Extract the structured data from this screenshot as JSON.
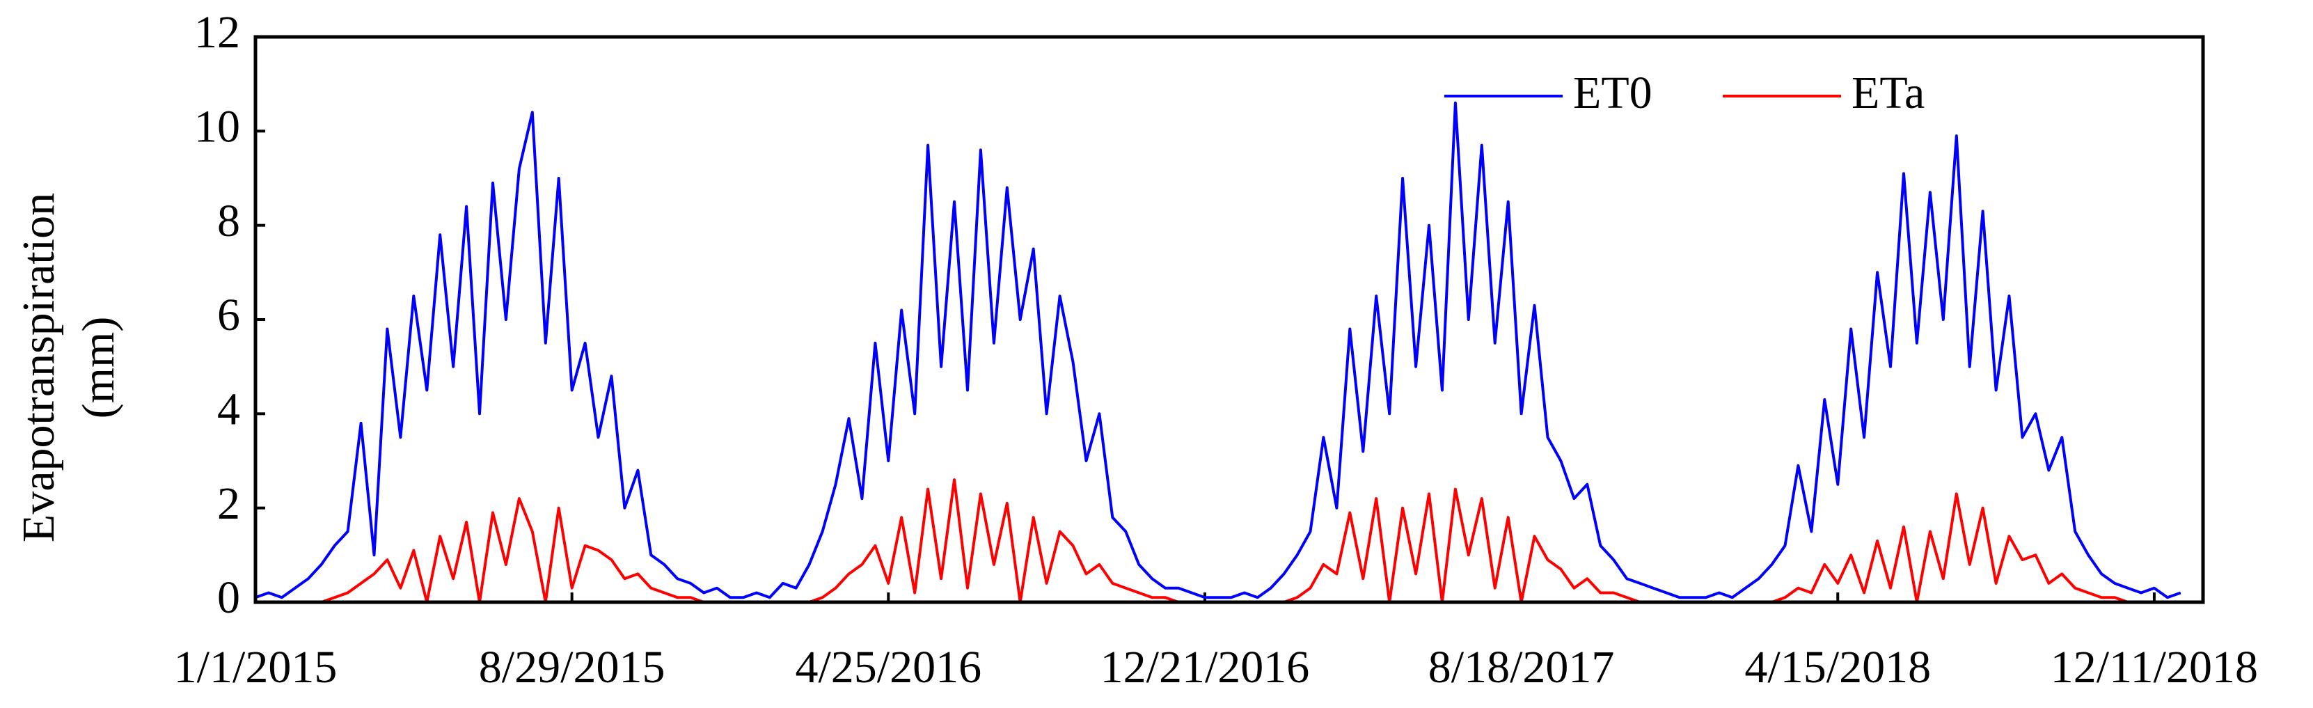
{
  "chart_data": {
    "type": "line",
    "ylabel": [
      "Evapotranspiration",
      "(mm)"
    ],
    "x": [
      "1/1/2015",
      "1/11/2015",
      "1/21/2015",
      "1/31/2015",
      "2/10/2015",
      "2/20/2015",
      "3/2/2015",
      "3/12/2015",
      "3/22/2015",
      "4/1/2015",
      "4/11/2015",
      "4/21/2015",
      "5/1/2015",
      "5/11/2015",
      "5/21/2015",
      "5/31/2015",
      "6/10/2015",
      "6/20/2015",
      "6/30/2015",
      "7/10/2015",
      "7/20/2015",
      "7/30/2015",
      "8/9/2015",
      "8/19/2015",
      "8/29/2015",
      "9/8/2015",
      "9/18/2015",
      "9/28/2015",
      "10/8/2015",
      "10/18/2015",
      "10/28/2015",
      "11/7/2015",
      "11/17/2015",
      "11/27/2015",
      "12/7/2015",
      "12/17/2015",
      "12/27/2015",
      "1/6/2016",
      "1/16/2016",
      "1/26/2016",
      "2/5/2016",
      "2/15/2016",
      "2/25/2016",
      "3/6/2016",
      "3/16/2016",
      "3/26/2016",
      "4/5/2016",
      "4/15/2016",
      "4/25/2016",
      "5/5/2016",
      "5/15/2016",
      "5/25/2016",
      "6/4/2016",
      "6/14/2016",
      "6/24/2016",
      "7/4/2016",
      "7/14/2016",
      "7/24/2016",
      "8/3/2016",
      "8/13/2016",
      "8/23/2016",
      "9/2/2016",
      "9/12/2016",
      "9/22/2016",
      "10/2/2016",
      "10/12/2016",
      "10/22/2016",
      "11/1/2016",
      "11/11/2016",
      "11/21/2016",
      "12/1/2016",
      "12/11/2016",
      "12/21/2016",
      "12/31/2016",
      "1/10/2017",
      "1/20/2017",
      "1/30/2017",
      "2/9/2017",
      "2/19/2017",
      "3/1/2017",
      "3/11/2017",
      "3/21/2017",
      "3/31/2017",
      "4/10/2017",
      "4/20/2017",
      "4/30/2017",
      "5/10/2017",
      "5/20/2017",
      "5/30/2017",
      "6/9/2017",
      "6/19/2017",
      "6/29/2017",
      "7/9/2017",
      "7/19/2017",
      "7/29/2017",
      "8/8/2017",
      "8/18/2017",
      "8/28/2017",
      "9/7/2017",
      "9/17/2017",
      "9/27/2017",
      "10/7/2017",
      "10/17/2017",
      "10/27/2017",
      "11/6/2017",
      "11/16/2017",
      "11/26/2017",
      "12/6/2017",
      "12/16/2017",
      "12/26/2017",
      "1/5/2018",
      "1/15/2018",
      "1/25/2018",
      "2/4/2018",
      "2/14/2018",
      "2/24/2018",
      "3/6/2018",
      "3/16/2018",
      "3/26/2018",
      "4/5/2018",
      "4/15/2018",
      "4/25/2018",
      "5/5/2018",
      "5/15/2018",
      "5/25/2018",
      "6/4/2018",
      "6/14/2018",
      "6/24/2018",
      "7/4/2018",
      "7/14/2018",
      "7/24/2018",
      "8/3/2018",
      "8/13/2018",
      "8/23/2018",
      "9/2/2018",
      "9/12/2018",
      "9/22/2018",
      "10/2/2018",
      "10/12/2018",
      "10/22/2018",
      "11/1/2018",
      "11/11/2018",
      "11/21/2018",
      "12/1/2018",
      "12/11/2018",
      "12/21/2018",
      "12/31/2018"
    ],
    "series": [
      {
        "name": "ET0",
        "color": "#0000ff",
        "values": [
          0.1,
          0.2,
          0.1,
          0.3,
          0.5,
          0.8,
          1.2,
          1.5,
          3.8,
          1.0,
          5.8,
          3.5,
          6.5,
          4.5,
          7.8,
          5.0,
          8.4,
          4.0,
          8.9,
          6.0,
          9.2,
          10.4,
          5.5,
          9.0,
          4.5,
          5.5,
          3.5,
          4.8,
          2.0,
          2.8,
          1.0,
          0.8,
          0.5,
          0.4,
          0.2,
          0.3,
          0.1,
          0.1,
          0.2,
          0.1,
          0.4,
          0.3,
          0.8,
          1.5,
          2.5,
          3.9,
          2.2,
          5.5,
          3.0,
          6.2,
          4.0,
          9.7,
          5.0,
          8.5,
          4.5,
          9.6,
          5.5,
          8.8,
          6.0,
          7.5,
          4.0,
          6.5,
          5.1,
          3.0,
          4.0,
          1.8,
          1.5,
          0.8,
          0.5,
          0.3,
          0.3,
          0.2,
          0.1,
          0.1,
          0.1,
          0.2,
          0.1,
          0.3,
          0.6,
          1.0,
          1.5,
          3.5,
          2.0,
          5.8,
          3.2,
          6.5,
          4.0,
          9.0,
          5.0,
          8.0,
          4.5,
          10.6,
          6.0,
          9.7,
          5.5,
          8.5,
          4.0,
          6.3,
          3.5,
          3.0,
          2.2,
          2.5,
          1.2,
          0.9,
          0.5,
          0.4,
          0.3,
          0.2,
          0.1,
          0.1,
          0.1,
          0.2,
          0.1,
          0.3,
          0.5,
          0.8,
          1.2,
          2.9,
          1.5,
          4.3,
          2.5,
          5.8,
          3.5,
          7.0,
          5.0,
          9.1,
          5.5,
          8.7,
          6.0,
          9.9,
          5.0,
          8.3,
          4.5,
          6.5,
          3.5,
          4.0,
          2.8,
          3.5,
          1.5,
          1.0,
          0.6,
          0.4,
          0.3,
          0.2,
          0.3,
          0.1,
          0.2
        ]
      },
      {
        "name": "ETa",
        "color": "#ff0000",
        "values": [
          0,
          0,
          0,
          0,
          0,
          0,
          0.1,
          0.2,
          0.4,
          0.6,
          0.9,
          0.3,
          1.1,
          0,
          1.4,
          0.5,
          1.7,
          0,
          1.9,
          0.8,
          2.2,
          1.5,
          0,
          2.0,
          0.3,
          1.2,
          1.1,
          0.9,
          0.5,
          0.6,
          0.3,
          0.2,
          0.1,
          0.1,
          0,
          0,
          0,
          0,
          0,
          0,
          0,
          0,
          0,
          0.1,
          0.3,
          0.6,
          0.8,
          1.2,
          0.4,
          1.8,
          0.2,
          2.4,
          0.5,
          2.6,
          0.3,
          2.3,
          0.8,
          2.1,
          0,
          1.8,
          0.4,
          1.5,
          1.2,
          0.6,
          0.8,
          0.4,
          0.3,
          0.2,
          0.1,
          0.1,
          0,
          0,
          0,
          0,
          0,
          0,
          0,
          0,
          0,
          0.1,
          0.3,
          0.8,
          0.6,
          1.9,
          0.5,
          2.2,
          0,
          2.0,
          0.6,
          2.3,
          0,
          2.4,
          1.0,
          2.2,
          0.3,
          1.8,
          0,
          1.4,
          0.9,
          0.7,
          0.3,
          0.5,
          0.2,
          0.2,
          0.1,
          0,
          0,
          0,
          0,
          0,
          0,
          0,
          0,
          0,
          0,
          0,
          0.1,
          0.3,
          0.2,
          0.8,
          0.4,
          1.0,
          0.2,
          1.3,
          0.3,
          1.6,
          0,
          1.5,
          0.5,
          2.3,
          0.8,
          2.0,
          0.4,
          1.4,
          0.9,
          1.0,
          0.4,
          0.6,
          0.3,
          0.2,
          0.1,
          0.1,
          0,
          0,
          0,
          0,
          0
        ]
      }
    ],
    "xlim": [
      "1/1/2015",
      "1/17/2019"
    ],
    "xticks": [
      "1/1/2015",
      "8/29/2015",
      "4/25/2016",
      "12/21/2016",
      "8/18/2017",
      "4/15/2018",
      "12/11/2018"
    ],
    "ylim": [
      0,
      12
    ],
    "yticks": [
      0,
      2,
      4,
      6,
      8,
      10,
      12
    ],
    "legend": "upper right"
  }
}
